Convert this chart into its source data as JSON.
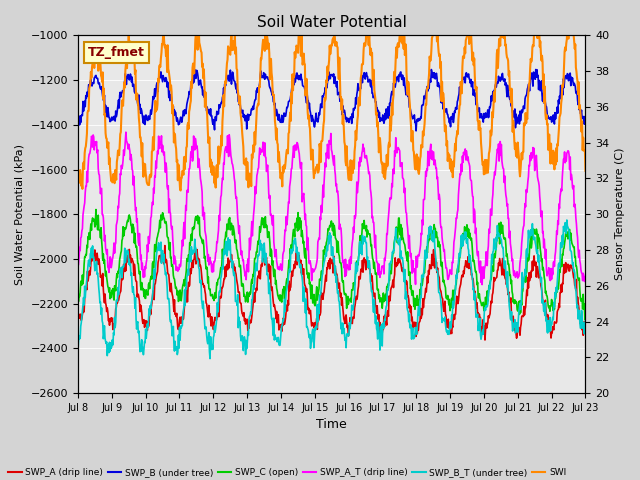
{
  "title": "Soil Water Potential",
  "xlabel": "Time",
  "ylabel_left": "Soil Water Potential (kPa)",
  "ylabel_right": "Sensor Temperature (C)",
  "annotation": "TZ_fmet",
  "ylim_left": [
    -2600,
    -1000
  ],
  "ylim_right": [
    20,
    40
  ],
  "yticks_left": [
    -2600,
    -2400,
    -2200,
    -2000,
    -1800,
    -1600,
    -1400,
    -1200,
    -1000
  ],
  "yticks_right": [
    20,
    22,
    24,
    26,
    28,
    30,
    32,
    34,
    36,
    38,
    40
  ],
  "xtick_labels": [
    "Jul 8",
    "Jul 9",
    "Jul 10",
    "Jul 11",
    "Jul 12",
    "Jul 13",
    "Jul 14",
    "Jul 15",
    "Jul 16",
    "Jul 17",
    "Jul 18",
    "Jul 19",
    "Jul 20",
    "Jul 21",
    "Jul 22",
    "Jul 23"
  ],
  "xtick_positions": [
    8,
    9,
    10,
    11,
    12,
    13,
    14,
    15,
    16,
    17,
    18,
    19,
    20,
    21,
    22,
    23
  ],
  "fig_bg": "#d4d4d4",
  "ax_bg": "#e8e8e8",
  "grid_color": "#ffffff",
  "series": [
    {
      "name": "SWP_A (drip line)",
      "color": "#dd0000"
    },
    {
      "name": "SWP_B (under tree)",
      "color": "#0000dd"
    },
    {
      "name": "SWP_C (open)",
      "color": "#00cc00"
    },
    {
      "name": "SWP_A_T (drip line)",
      "color": "#ff00ff"
    },
    {
      "name": "SWP_B_T (under tree)",
      "color": "#00cccc"
    },
    {
      "name": "SWI",
      "color": "#ff8800"
    }
  ],
  "annotation_color": "#880000",
  "annotation_bg": "#ffffcc",
  "annotation_edge": "#cc8800"
}
